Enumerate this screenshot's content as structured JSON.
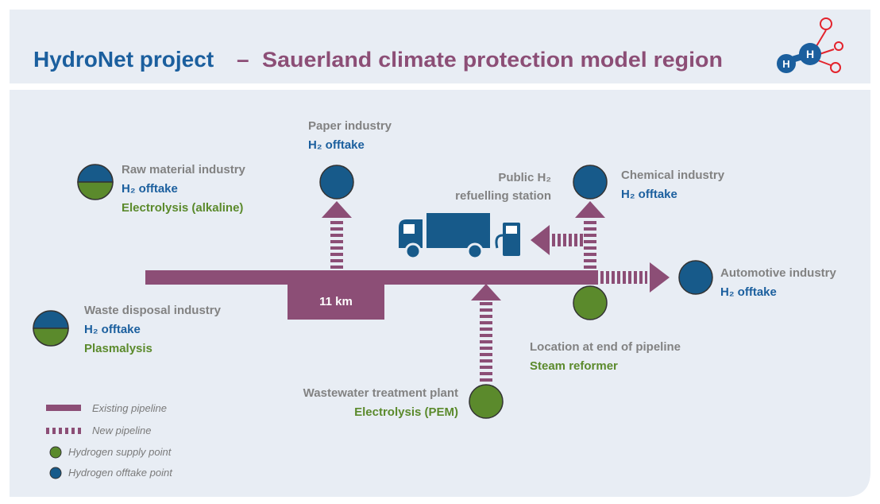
{
  "header": {
    "title": "HydroNet project",
    "separator": "–",
    "subtitle": "Sauerland climate protection model region",
    "logo": [
      "H",
      "H"
    ]
  },
  "nodes": [
    {
      "name": "Paper industry",
      "roles": [
        "H₂ offtake"
      ]
    },
    {
      "name": "Raw material industry",
      "roles": [
        "H₂ offtake",
        "Electrolysis (alkaline)"
      ]
    },
    {
      "name": "Chemical industry",
      "roles": [
        "H₂ offtake"
      ]
    },
    {
      "name": "Automotive industry",
      "roles": [
        "H₂ offtake"
      ]
    },
    {
      "name": "Waste disposal industry",
      "roles": [
        "H₂ offtake",
        "Plasmalysis"
      ]
    },
    {
      "name": "Location at end of pipeline",
      "roles": [
        "Steam reformer"
      ]
    },
    {
      "name": "Wastewater treatment plant",
      "roles": [
        "Electrolysis (PEM)"
      ]
    }
  ],
  "refuelling_station": [
    "Public H₂",
    "refuelling station"
  ],
  "pipeline_label": "11 km",
  "legend": [
    "Existing pipeline",
    "New pipeline",
    "Hydrogen supply point",
    "Hydrogen offtake point"
  ]
}
